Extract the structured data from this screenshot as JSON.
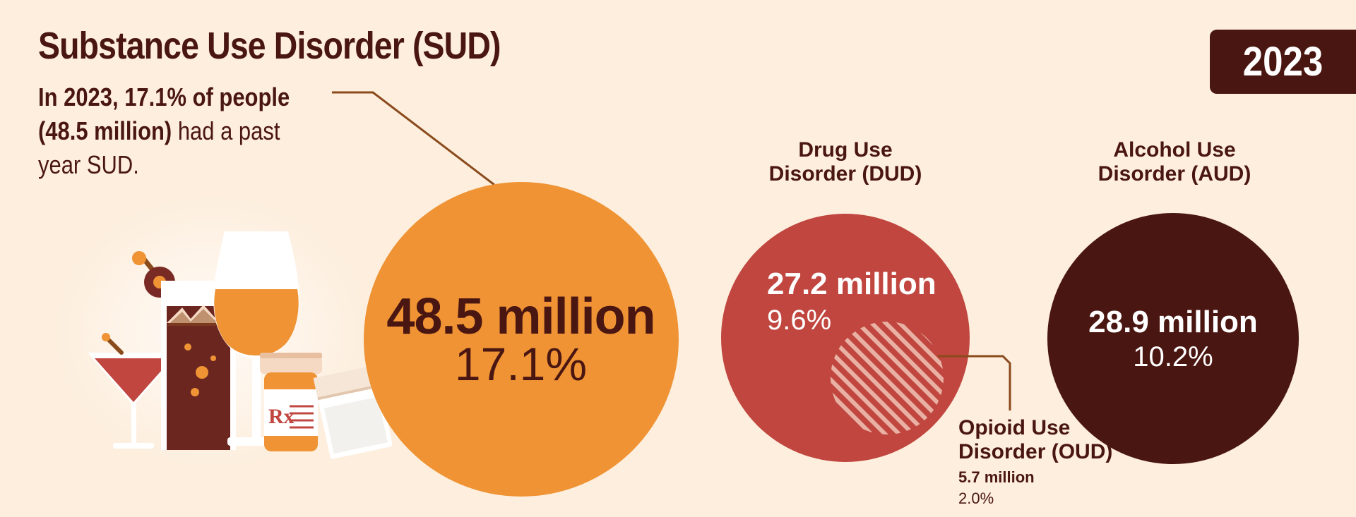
{
  "title": "Substance Use Disorder (SUD)",
  "intro": {
    "bold_1": "In 2023, 17.1% of people",
    "bold_2": "(48.5 million)",
    "rest_2": " had a past",
    "line_3": "year SUD."
  },
  "year": "2023",
  "colors": {
    "background": "#fdeedd",
    "sud": "#ef9334",
    "dud": "#c0463f",
    "aud": "#4a1611",
    "text_dark": "#4a1611",
    "leader": "#8a4a1c"
  },
  "sud": {
    "value": "48.5 million",
    "percent": "17.1%"
  },
  "dud": {
    "label_line1": "Drug Use",
    "label_line2": "Disorder (DUD)",
    "value": "27.2 million",
    "percent": "9.6%"
  },
  "aud": {
    "label_line1": "Alcohol Use",
    "label_line2": "Disorder (AUD)",
    "value": "28.9 million",
    "percent": "10.2%"
  },
  "oud": {
    "label_line1": "Opioid Use",
    "label_line2": "Disorder (OUD)",
    "value": "5.7 million",
    "percent": "2.0%"
  },
  "icons": [
    "martini-glass-icon",
    "soda-glass-icon",
    "wine-glass-icon",
    "pill-bottle-icon",
    "drug-bag-icon"
  ],
  "rx_symbol": "Rx"
}
